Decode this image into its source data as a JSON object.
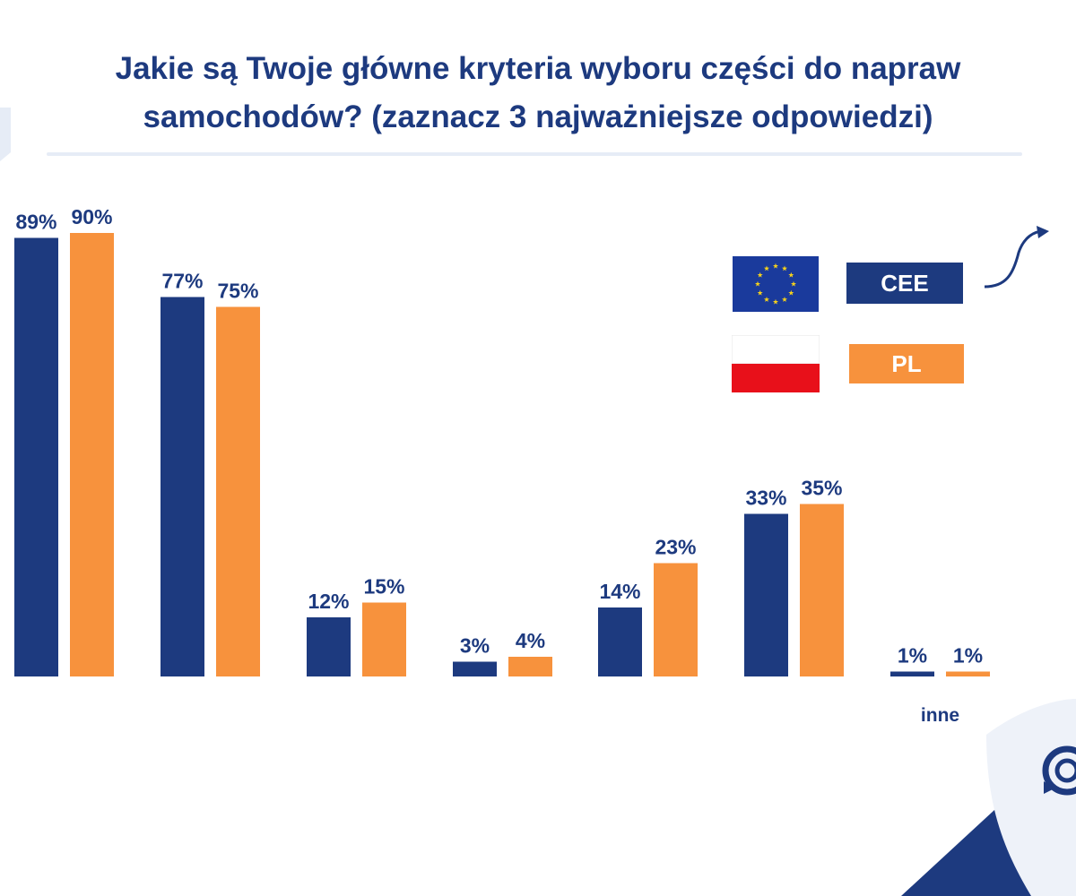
{
  "chart_data": {
    "type": "bar",
    "title": "Jakie są Twoje główne kryteria wyboru części do napraw samochodów? (zaznacz 3 najważniejsze odpowiedzi)",
    "categories": [
      "",
      "",
      "",
      "",
      "",
      "",
      "inne"
    ],
    "series": [
      {
        "name": "CEE",
        "values": [
          89,
          77,
          12,
          3,
          14,
          33,
          1
        ],
        "labels": [
          "89%",
          "77%",
          "12%",
          "3%",
          "14%",
          "33%",
          "1%"
        ],
        "color": "#1d3a7f"
      },
      {
        "name": "PL",
        "values": [
          90,
          75,
          15,
          4,
          23,
          35,
          1
        ],
        "labels": [
          "90%",
          "75%",
          "15%",
          "4%",
          "23%",
          "35%",
          "1%"
        ],
        "color": "#f7923d"
      }
    ],
    "ylim": [
      0,
      100
    ],
    "grid": false,
    "legend": "top-right"
  },
  "legend": {
    "cee_label": "CEE",
    "pl_label": "PL",
    "cee_flag_icon": "eu-flag-icon",
    "pl_flag_icon": "poland-flag-icon"
  },
  "colors": {
    "navy": "#1d3a7f",
    "orange": "#f7923d",
    "eu_blue": "#1a3a9c",
    "eu_star": "#f7d21b",
    "pl_red": "#e8101a",
    "corner_blue": "#1d3a7f",
    "corner_light": "#eef2f9"
  }
}
